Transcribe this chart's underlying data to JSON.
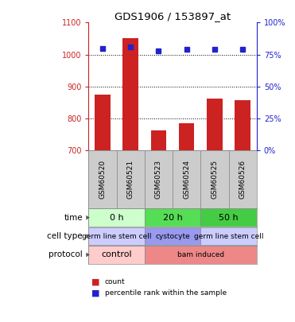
{
  "title": "GDS1906 / 153897_at",
  "samples": [
    "GSM60520",
    "GSM60521",
    "GSM60523",
    "GSM60524",
    "GSM60525",
    "GSM60526"
  ],
  "counts": [
    875,
    1052,
    762,
    785,
    862,
    858
  ],
  "percentile_ranks": [
    80,
    81,
    78,
    79,
    79,
    79
  ],
  "ylim_left": [
    700,
    1100
  ],
  "ylim_right": [
    0,
    100
  ],
  "yticks_left": [
    700,
    800,
    900,
    1000,
    1100
  ],
  "yticks_right": [
    0,
    25,
    50,
    75,
    100
  ],
  "ytick_labels_right": [
    "0%",
    "25%",
    "50%",
    "75%",
    "100%"
  ],
  "bar_color": "#cc2222",
  "dot_color": "#2222cc",
  "sample_bg": "#cccccc",
  "left_axis_color": "#cc2222",
  "right_axis_color": "#2222cc",
  "time_groups": [
    {
      "label": "0 h",
      "cols": [
        0,
        1
      ],
      "color": "#ccffcc"
    },
    {
      "label": "20 h",
      "cols": [
        2,
        3
      ],
      "color": "#55dd55"
    },
    {
      "label": "50 h",
      "cols": [
        4,
        5
      ],
      "color": "#44cc44"
    }
  ],
  "cell_type_groups": [
    {
      "label": "germ line stem cell",
      "cols": [
        0,
        1
      ],
      "color": "#ccccff"
    },
    {
      "label": "cystocyte",
      "cols": [
        2,
        3
      ],
      "color": "#9999ee"
    },
    {
      "label": "germ line stem cell",
      "cols": [
        4,
        5
      ],
      "color": "#ccccff"
    }
  ],
  "protocol_groups": [
    {
      "label": "control",
      "cols": [
        0,
        1
      ],
      "color": "#ffcccc"
    },
    {
      "label": "bam induced",
      "cols": [
        2,
        3,
        4,
        5
      ],
      "color": "#ee8888"
    }
  ],
  "row_labels": [
    "time",
    "cell type",
    "protocol"
  ],
  "legend_items": [
    {
      "color": "#cc2222",
      "label": "count"
    },
    {
      "color": "#2222cc",
      "label": "percentile rank within the sample"
    }
  ]
}
